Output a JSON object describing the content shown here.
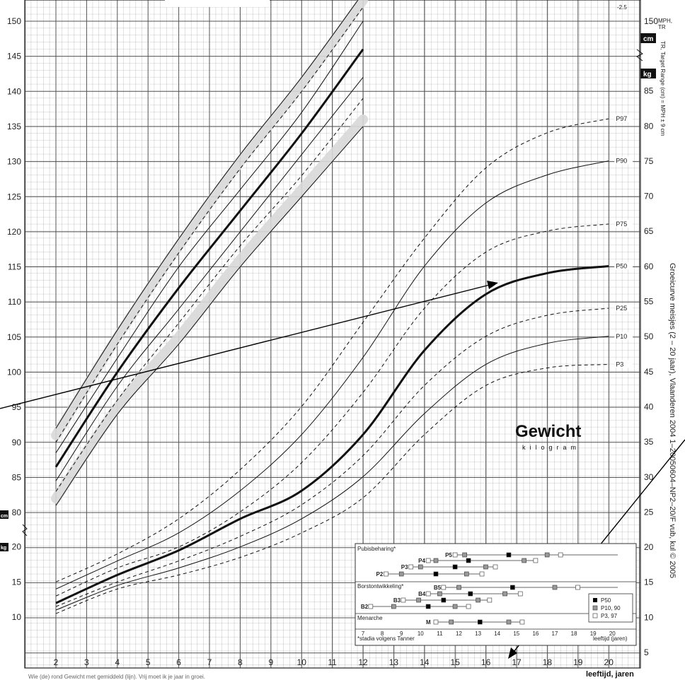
{
  "chart_data": {
    "type": "line",
    "title": "Gewicht",
    "subtitle": "kilogram",
    "xlabel": "leeftijd, jaren",
    "x_ticks": [
      2,
      3,
      4,
      5,
      6,
      7,
      8,
      9,
      10,
      11,
      12,
      13,
      14,
      15,
      16,
      17,
      18,
      19,
      20
    ],
    "xlim": [
      1.0,
      21.0
    ],
    "height_axis": {
      "unit": "cm",
      "ticks": [
        80,
        85,
        90,
        95,
        100,
        105,
        110,
        115,
        120,
        125,
        130,
        135,
        140,
        145,
        150
      ],
      "range": [
        76,
        153
      ]
    },
    "weight_axis_left": {
      "unit": "kg",
      "ticks": [
        10,
        15,
        20
      ],
      "range": [
        5,
        22
      ]
    },
    "weight_axis_right": {
      "unit": "kg",
      "ticks": [
        5,
        10,
        15,
        20,
        25,
        30,
        35,
        40,
        45,
        50,
        55,
        60,
        65,
        70,
        75,
        80,
        85
      ],
      "range": [
        5,
        85
      ]
    },
    "height_axis_right_ticks": [
      150
    ],
    "right_top_labels": {
      "mph": "MPH,",
      "tr": "TR",
      "top_value": "-2.5",
      "tr_desc": "TR, Target Range (cm) = MPH ± 9 cm"
    },
    "side_text": "Groeicurve meisjes (2 – 20 jaar), Vlaanderen 2004 1–20050604–NP2–20/F vub, kul © 2005",
    "weight_series": [
      {
        "name": "P97",
        "x": [
          2,
          4,
          6,
          8,
          10,
          12,
          14,
          16,
          18,
          20
        ],
        "y": [
          15,
          19,
          24,
          31,
          40,
          52,
          64,
          74,
          79,
          81
        ]
      },
      {
        "name": "P90",
        "x": [
          2,
          4,
          6,
          8,
          10,
          12,
          14,
          16,
          18,
          20
        ],
        "y": [
          14,
          18,
          22,
          28,
          36,
          47,
          60,
          69,
          73,
          75
        ]
      },
      {
        "name": "P75",
        "x": [
          2,
          4,
          6,
          8,
          10,
          12,
          14,
          16,
          18,
          20
        ],
        "y": [
          13,
          17,
          20,
          25,
          32,
          42,
          54,
          62,
          65,
          66
        ]
      },
      {
        "name": "P50",
        "x": [
          2,
          4,
          6,
          8,
          10,
          12,
          14,
          16,
          18,
          20
        ],
        "y": [
          12,
          16,
          19.5,
          24,
          28,
          36,
          48,
          56,
          59,
          60
        ]
      },
      {
        "name": "P25",
        "x": [
          2,
          4,
          6,
          8,
          10,
          12,
          14,
          16,
          18,
          20
        ],
        "y": [
          11.5,
          15,
          18,
          21.5,
          26,
          33,
          43,
          50,
          53,
          54
        ]
      },
      {
        "name": "P10",
        "x": [
          2,
          4,
          6,
          8,
          10,
          12,
          14,
          16,
          18,
          20
        ],
        "y": [
          11,
          14.5,
          17,
          20,
          24,
          30,
          39,
          46,
          49,
          50
        ]
      },
      {
        "name": "P3",
        "x": [
          2,
          4,
          6,
          8,
          10,
          12,
          14,
          16,
          18,
          20
        ],
        "y": [
          10.5,
          14,
          16,
          18.5,
          22,
          27,
          36,
          43,
          45.5,
          46
        ]
      }
    ],
    "height_series": [
      {
        "x": [
          2,
          4,
          6,
          8,
          10,
          12
        ],
        "y": [
          92,
          106,
          119,
          131,
          142,
          154
        ]
      },
      {
        "x": [
          2,
          4,
          6,
          8,
          10,
          12
        ],
        "y": [
          90,
          104,
          117,
          129,
          140,
          152
        ]
      },
      {
        "x": [
          2,
          4,
          6,
          8,
          10,
          12
        ],
        "y": [
          88.5,
          102,
          115,
          126,
          137,
          150
        ]
      },
      {
        "x": [
          2,
          4,
          6,
          8,
          10,
          12
        ],
        "y": [
          86.5,
          100,
          112,
          123,
          134,
          146
        ]
      },
      {
        "x": [
          2,
          4,
          6,
          8,
          10,
          12
        ],
        "y": [
          84.5,
          98,
          109,
          120,
          131,
          142
        ]
      },
      {
        "x": [
          2,
          4,
          6,
          8,
          10,
          12
        ],
        "y": [
          83,
          96,
          107,
          118,
          128,
          139
        ]
      },
      {
        "x": [
          2,
          4,
          6,
          8,
          10,
          12
        ],
        "y": [
          81,
          94,
          104,
          115,
          125,
          135
        ]
      }
    ],
    "inset": {
      "rows": [
        "Pubisbeharing*",
        "Borstontwikkeling*",
        "Menarche"
      ],
      "stages_pubic": [
        "P5",
        "P4",
        "P3",
        "P2"
      ],
      "stages_breast": [
        "B5",
        "B4",
        "B3",
        "B2"
      ],
      "menarche_label": "M",
      "legend": [
        "P50",
        "P10, 90",
        "P3, 97"
      ],
      "x_ticks": [
        7,
        8,
        9,
        10,
        11,
        12,
        13,
        14,
        15,
        16,
        17,
        18,
        19,
        20
      ],
      "footnote": "*stadia volgens Tanner",
      "axis_title": "leeftijd (jaren)"
    },
    "bottom_caption": "Wie (de) rond Gewicht met gemiddeld (lijn). Vrij moet ik je jaar in groei."
  }
}
